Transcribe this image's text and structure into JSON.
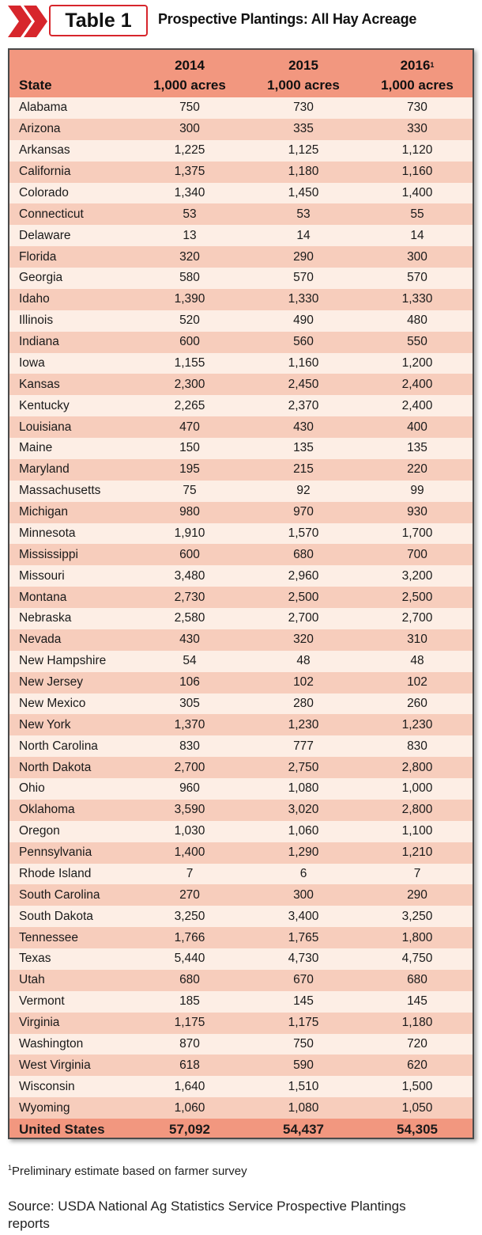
{
  "header": {
    "tab_label": "Table 1",
    "title": "Prospective Plantings: All Hay Acreage"
  },
  "table": {
    "columns": [
      {
        "key": "state",
        "label": "State"
      },
      {
        "key": "y2014",
        "year": "2014",
        "footnote_mark": "",
        "unit": "1,000 acres"
      },
      {
        "key": "y2015",
        "year": "2015",
        "footnote_mark": "",
        "unit": "1,000 acres"
      },
      {
        "key": "y2016",
        "year": "2016",
        "footnote_mark": "1",
        "unit": "1,000 acres"
      }
    ],
    "rows": [
      [
        "Alabama",
        "750",
        "730",
        "730"
      ],
      [
        "Arizona",
        "300",
        "335",
        "330"
      ],
      [
        "Arkansas",
        "1,225",
        "1,125",
        "1,120"
      ],
      [
        "California",
        "1,375",
        "1,180",
        "1,160"
      ],
      [
        "Colorado",
        "1,340",
        "1,450",
        "1,400"
      ],
      [
        "Connecticut",
        "53",
        "53",
        "55"
      ],
      [
        "Delaware",
        "13",
        "14",
        "14"
      ],
      [
        "Florida",
        "320",
        "290",
        "300"
      ],
      [
        "Georgia",
        "580",
        "570",
        "570"
      ],
      [
        "Idaho",
        "1,390",
        "1,330",
        "1,330"
      ],
      [
        "Illinois",
        "520",
        "490",
        "480"
      ],
      [
        "Indiana",
        "600",
        "560",
        "550"
      ],
      [
        "Iowa",
        "1,155",
        "1,160",
        "1,200"
      ],
      [
        "Kansas",
        "2,300",
        "2,450",
        "2,400"
      ],
      [
        "Kentucky",
        "2,265",
        "2,370",
        "2,400"
      ],
      [
        "Louisiana",
        "470",
        "430",
        "400"
      ],
      [
        "Maine",
        "150",
        "135",
        "135"
      ],
      [
        "Maryland",
        "195",
        "215",
        "220"
      ],
      [
        "Massachusetts",
        "75",
        "92",
        "99"
      ],
      [
        "Michigan",
        "980",
        "970",
        "930"
      ],
      [
        "Minnesota",
        "1,910",
        "1,570",
        "1,700"
      ],
      [
        "Mississippi",
        "600",
        "680",
        "700"
      ],
      [
        "Missouri",
        "3,480",
        "2,960",
        "3,200"
      ],
      [
        "Montana",
        "2,730",
        "2,500",
        "2,500"
      ],
      [
        "Nebraska",
        "2,580",
        "2,700",
        "2,700"
      ],
      [
        "Nevada",
        "430",
        "320",
        "310"
      ],
      [
        "New Hampshire",
        "54",
        "48",
        "48"
      ],
      [
        "New Jersey",
        "106",
        "102",
        "102"
      ],
      [
        "New Mexico",
        "305",
        "280",
        "260"
      ],
      [
        "New York",
        "1,370",
        "1,230",
        "1,230"
      ],
      [
        "North Carolina",
        "830",
        "777",
        "830"
      ],
      [
        "North Dakota",
        "2,700",
        "2,750",
        "2,800"
      ],
      [
        "Ohio",
        "960",
        "1,080",
        "1,000"
      ],
      [
        "Oklahoma",
        "3,590",
        "3,020",
        "2,800"
      ],
      [
        "Oregon",
        "1,030",
        "1,060",
        "1,100"
      ],
      [
        "Pennsylvania",
        "1,400",
        "1,290",
        "1,210"
      ],
      [
        "Rhode Island",
        "7",
        "6",
        "7"
      ],
      [
        "South Carolina",
        "270",
        "300",
        "290"
      ],
      [
        "South Dakota",
        "3,250",
        "3,400",
        "3,250"
      ],
      [
        "Tennessee",
        "1,766",
        "1,765",
        "1,800"
      ],
      [
        "Texas",
        "5,440",
        "4,730",
        "4,750"
      ],
      [
        "Utah",
        "680",
        "670",
        "680"
      ],
      [
        "Vermont",
        "185",
        "145",
        "145"
      ],
      [
        "Virginia",
        "1,175",
        "1,175",
        "1,180"
      ],
      [
        "Washington",
        "870",
        "750",
        "720"
      ],
      [
        "West Virginia",
        "618",
        "590",
        "620"
      ],
      [
        "Wisconsin",
        "1,640",
        "1,510",
        "1,500"
      ],
      [
        "Wyoming",
        "1,060",
        "1,080",
        "1,050"
      ]
    ],
    "total": [
      "United States",
      "57,092",
      "54,437",
      "54,305"
    ]
  },
  "footnote": {
    "mark": "1",
    "text": "Preliminary estimate based on farmer survey"
  },
  "source": "Source: USDA National Ag Statistics Service Prospective Plantings reports",
  "colors": {
    "header_fill": "#f2977f",
    "row_light": "#fdeee5",
    "row_dark": "#f7cdbc",
    "accent_red": "#d7262c",
    "border": "#4a4a4a"
  }
}
